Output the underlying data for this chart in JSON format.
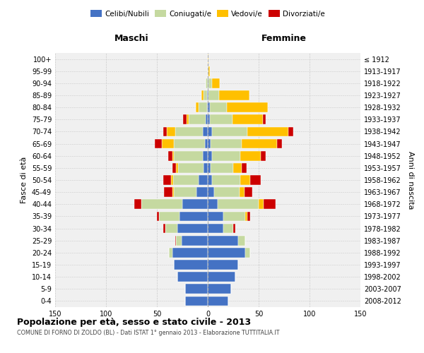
{
  "age_groups": [
    "0-4",
    "5-9",
    "10-14",
    "15-19",
    "20-24",
    "25-29",
    "30-34",
    "35-39",
    "40-44",
    "45-49",
    "50-54",
    "55-59",
    "60-64",
    "65-69",
    "70-74",
    "75-79",
    "80-84",
    "85-89",
    "90-94",
    "95-99",
    "100+"
  ],
  "birth_years": [
    "2008-2012",
    "2003-2007",
    "1998-2002",
    "1993-1997",
    "1988-1992",
    "1983-1987",
    "1978-1982",
    "1973-1977",
    "1968-1972",
    "1963-1967",
    "1958-1962",
    "1953-1957",
    "1948-1952",
    "1943-1947",
    "1938-1942",
    "1933-1937",
    "1928-1932",
    "1923-1927",
    "1918-1922",
    "1913-1917",
    "≤ 1912"
  ],
  "male": {
    "celibi": [
      22,
      22,
      30,
      33,
      35,
      26,
      30,
      28,
      25,
      11,
      9,
      4,
      5,
      3,
      5,
      2,
      1,
      1,
      0,
      0,
      0
    ],
    "coniugati": [
      0,
      0,
      0,
      0,
      3,
      5,
      12,
      20,
      40,
      22,
      25,
      25,
      28,
      30,
      27,
      17,
      8,
      3,
      2,
      0,
      0
    ],
    "vedovi": [
      0,
      0,
      0,
      0,
      0,
      0,
      0,
      0,
      0,
      2,
      2,
      2,
      2,
      12,
      8,
      2,
      3,
      2,
      0,
      0,
      0
    ],
    "divorziati": [
      0,
      0,
      0,
      0,
      0,
      1,
      2,
      2,
      7,
      8,
      8,
      4,
      4,
      7,
      4,
      3,
      0,
      0,
      0,
      0,
      0
    ]
  },
  "female": {
    "nubili": [
      20,
      23,
      27,
      30,
      37,
      30,
      15,
      15,
      10,
      6,
      4,
      3,
      4,
      3,
      4,
      2,
      2,
      1,
      1,
      0,
      0
    ],
    "coniugate": [
      0,
      0,
      0,
      0,
      5,
      7,
      10,
      22,
      40,
      25,
      28,
      22,
      28,
      30,
      35,
      22,
      17,
      10,
      3,
      1,
      0
    ],
    "vedove": [
      0,
      0,
      0,
      0,
      0,
      0,
      0,
      2,
      5,
      5,
      10,
      8,
      20,
      35,
      40,
      30,
      40,
      30,
      8,
      1,
      1
    ],
    "divorziate": [
      0,
      0,
      0,
      0,
      0,
      0,
      2,
      3,
      12,
      8,
      10,
      5,
      5,
      5,
      5,
      3,
      0,
      0,
      0,
      0,
      0
    ]
  },
  "colors": {
    "celibi": "#4472c4",
    "coniugati": "#c5d9a0",
    "vedovi": "#ffc000",
    "divorziati": "#cc0000"
  },
  "title": "Popolazione per età, sesso e stato civile - 2013",
  "subtitle": "COMUNE DI FORNO DI ZOLDO (BL) - Dati ISTAT 1° gennaio 2013 - Elaborazione TUTTITALIA.IT",
  "xlabel_left": "Maschi",
  "xlabel_right": "Femmine",
  "ylabel_left": "Fasce di età",
  "ylabel_right": "Anni di nascita",
  "xlim": 150,
  "background_color": "#ffffff",
  "plot_bg": "#f0f0f0",
  "grid_color": "#cccccc"
}
